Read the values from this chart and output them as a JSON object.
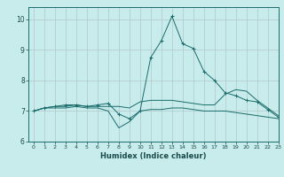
{
  "title": "",
  "xlabel": "Humidex (Indice chaleur)",
  "ylabel": "",
  "background_color": "#c8ecec",
  "grid_color": "#b0c8c8",
  "line_color": "#1a6b6b",
  "xlim": [
    -0.5,
    23
  ],
  "ylim": [
    6,
    10.4
  ],
  "yticks": [
    6,
    7,
    8,
    9,
    10
  ],
  "xticks": [
    0,
    1,
    2,
    3,
    4,
    5,
    6,
    7,
    8,
    9,
    10,
    11,
    12,
    13,
    14,
    15,
    16,
    17,
    18,
    19,
    20,
    21,
    22,
    23
  ],
  "series": [
    {
      "x": [
        0,
        1,
        2,
        3,
        4,
        5,
        6,
        7,
        8,
        9,
        10,
        11,
        12,
        13,
        14,
        15,
        16,
        17,
        18,
        19,
        20,
        21,
        22,
        23
      ],
      "y": [
        7.0,
        7.1,
        7.1,
        7.1,
        7.15,
        7.1,
        7.1,
        7.0,
        6.45,
        6.65,
        7.0,
        7.05,
        7.05,
        7.1,
        7.1,
        7.05,
        7.0,
        7.0,
        7.0,
        6.95,
        6.9,
        6.85,
        6.8,
        6.75
      ],
      "marker": false
    },
    {
      "x": [
        0,
        1,
        2,
        3,
        4,
        5,
        6,
        7,
        8,
        9,
        10,
        11,
        12,
        13,
        14,
        15,
        16,
        17,
        18,
        19,
        20,
        21,
        22,
        23
      ],
      "y": [
        7.0,
        7.1,
        7.15,
        7.15,
        7.2,
        7.15,
        7.15,
        7.15,
        7.15,
        7.1,
        7.3,
        7.35,
        7.35,
        7.35,
        7.3,
        7.25,
        7.2,
        7.2,
        7.55,
        7.7,
        7.65,
        7.35,
        7.1,
        6.85
      ],
      "marker": false
    },
    {
      "x": [
        0,
        1,
        2,
        3,
        4,
        5,
        6,
        7,
        8,
        9,
        10,
        11,
        12,
        13,
        14,
        15,
        16,
        17,
        18,
        19,
        20,
        21,
        22,
        23
      ],
      "y": [
        7.0,
        7.1,
        7.15,
        7.2,
        7.2,
        7.15,
        7.2,
        7.25,
        6.9,
        6.75,
        7.0,
        8.75,
        9.3,
        10.1,
        9.2,
        9.05,
        8.3,
        8.0,
        7.6,
        7.5,
        7.35,
        7.3,
        7.05,
        6.8
      ],
      "marker": true
    }
  ]
}
